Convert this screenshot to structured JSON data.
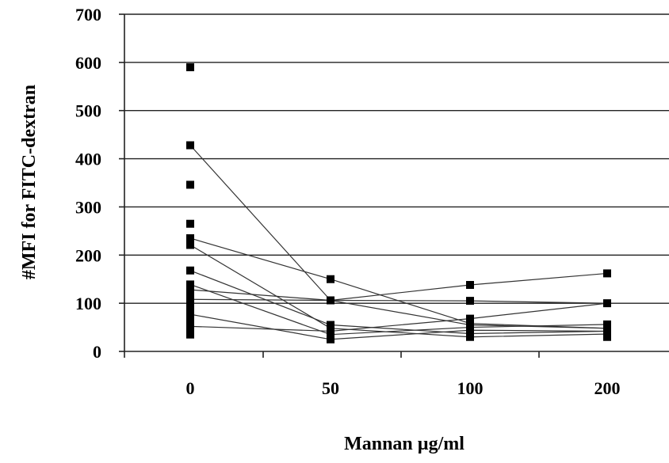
{
  "chart_data": {
    "type": "scatter",
    "title": "",
    "xlabel": "Mannan µg/ml",
    "ylabel": "#MFI for FITC-dextran",
    "categories": [
      "0",
      "50",
      "100",
      "200"
    ],
    "yticks": [
      "0",
      "100",
      "200",
      "300",
      "400",
      "500",
      "600",
      "700"
    ],
    "ylim": [
      0,
      700
    ],
    "grid": true,
    "legend": "none",
    "points": [
      {
        "x": "0",
        "y": 590
      },
      {
        "x": "0",
        "y": 428
      },
      {
        "x": "0",
        "y": 346
      },
      {
        "x": "0",
        "y": 265
      },
      {
        "x": "0",
        "y": 235
      },
      {
        "x": "0",
        "y": 221
      },
      {
        "x": "0",
        "y": 168
      },
      {
        "x": "0",
        "y": 139
      },
      {
        "x": "0",
        "y": 128
      },
      {
        "x": "0",
        "y": 118
      },
      {
        "x": "0",
        "y": 108
      },
      {
        "x": "0",
        "y": 98
      },
      {
        "x": "0",
        "y": 88
      },
      {
        "x": "0",
        "y": 77
      },
      {
        "x": "0",
        "y": 70
      },
      {
        "x": "0",
        "y": 58
      },
      {
        "x": "0",
        "y": 48
      },
      {
        "x": "0",
        "y": 35
      },
      {
        "x": "50",
        "y": 150
      },
      {
        "x": "50",
        "y": 106
      },
      {
        "x": "50",
        "y": 55
      },
      {
        "x": "50",
        "y": 48
      },
      {
        "x": "50",
        "y": 42
      },
      {
        "x": "50",
        "y": 35
      },
      {
        "x": "50",
        "y": 25
      },
      {
        "x": "100",
        "y": 138
      },
      {
        "x": "100",
        "y": 105
      },
      {
        "x": "100",
        "y": 68
      },
      {
        "x": "100",
        "y": 58
      },
      {
        "x": "100",
        "y": 50
      },
      {
        "x": "100",
        "y": 44
      },
      {
        "x": "100",
        "y": 37
      },
      {
        "x": "100",
        "y": 30
      },
      {
        "x": "200",
        "y": 162
      },
      {
        "x": "200",
        "y": 100
      },
      {
        "x": "200",
        "y": 56
      },
      {
        "x": "200",
        "y": 48
      },
      {
        "x": "200",
        "y": 42
      },
      {
        "x": "200",
        "y": 36
      },
      {
        "x": "200",
        "y": 30
      }
    ],
    "lines": [
      {
        "values": [
          428,
          106,
          55,
          48
        ]
      },
      {
        "values": [
          235,
          150,
          58,
          48
        ]
      },
      {
        "values": [
          221,
          48,
          30,
          36
        ]
      },
      {
        "values": [
          168,
          55,
          37,
          42
        ]
      },
      {
        "values": [
          139,
          35,
          50,
          56
        ]
      },
      {
        "values": [
          128,
          106,
          138,
          162
        ]
      },
      {
        "values": [
          108,
          106,
          105,
          100
        ]
      },
      {
        "values": [
          77,
          25,
          44,
          42
        ]
      },
      {
        "values": [
          52,
          42,
          68,
          100
        ]
      }
    ]
  }
}
